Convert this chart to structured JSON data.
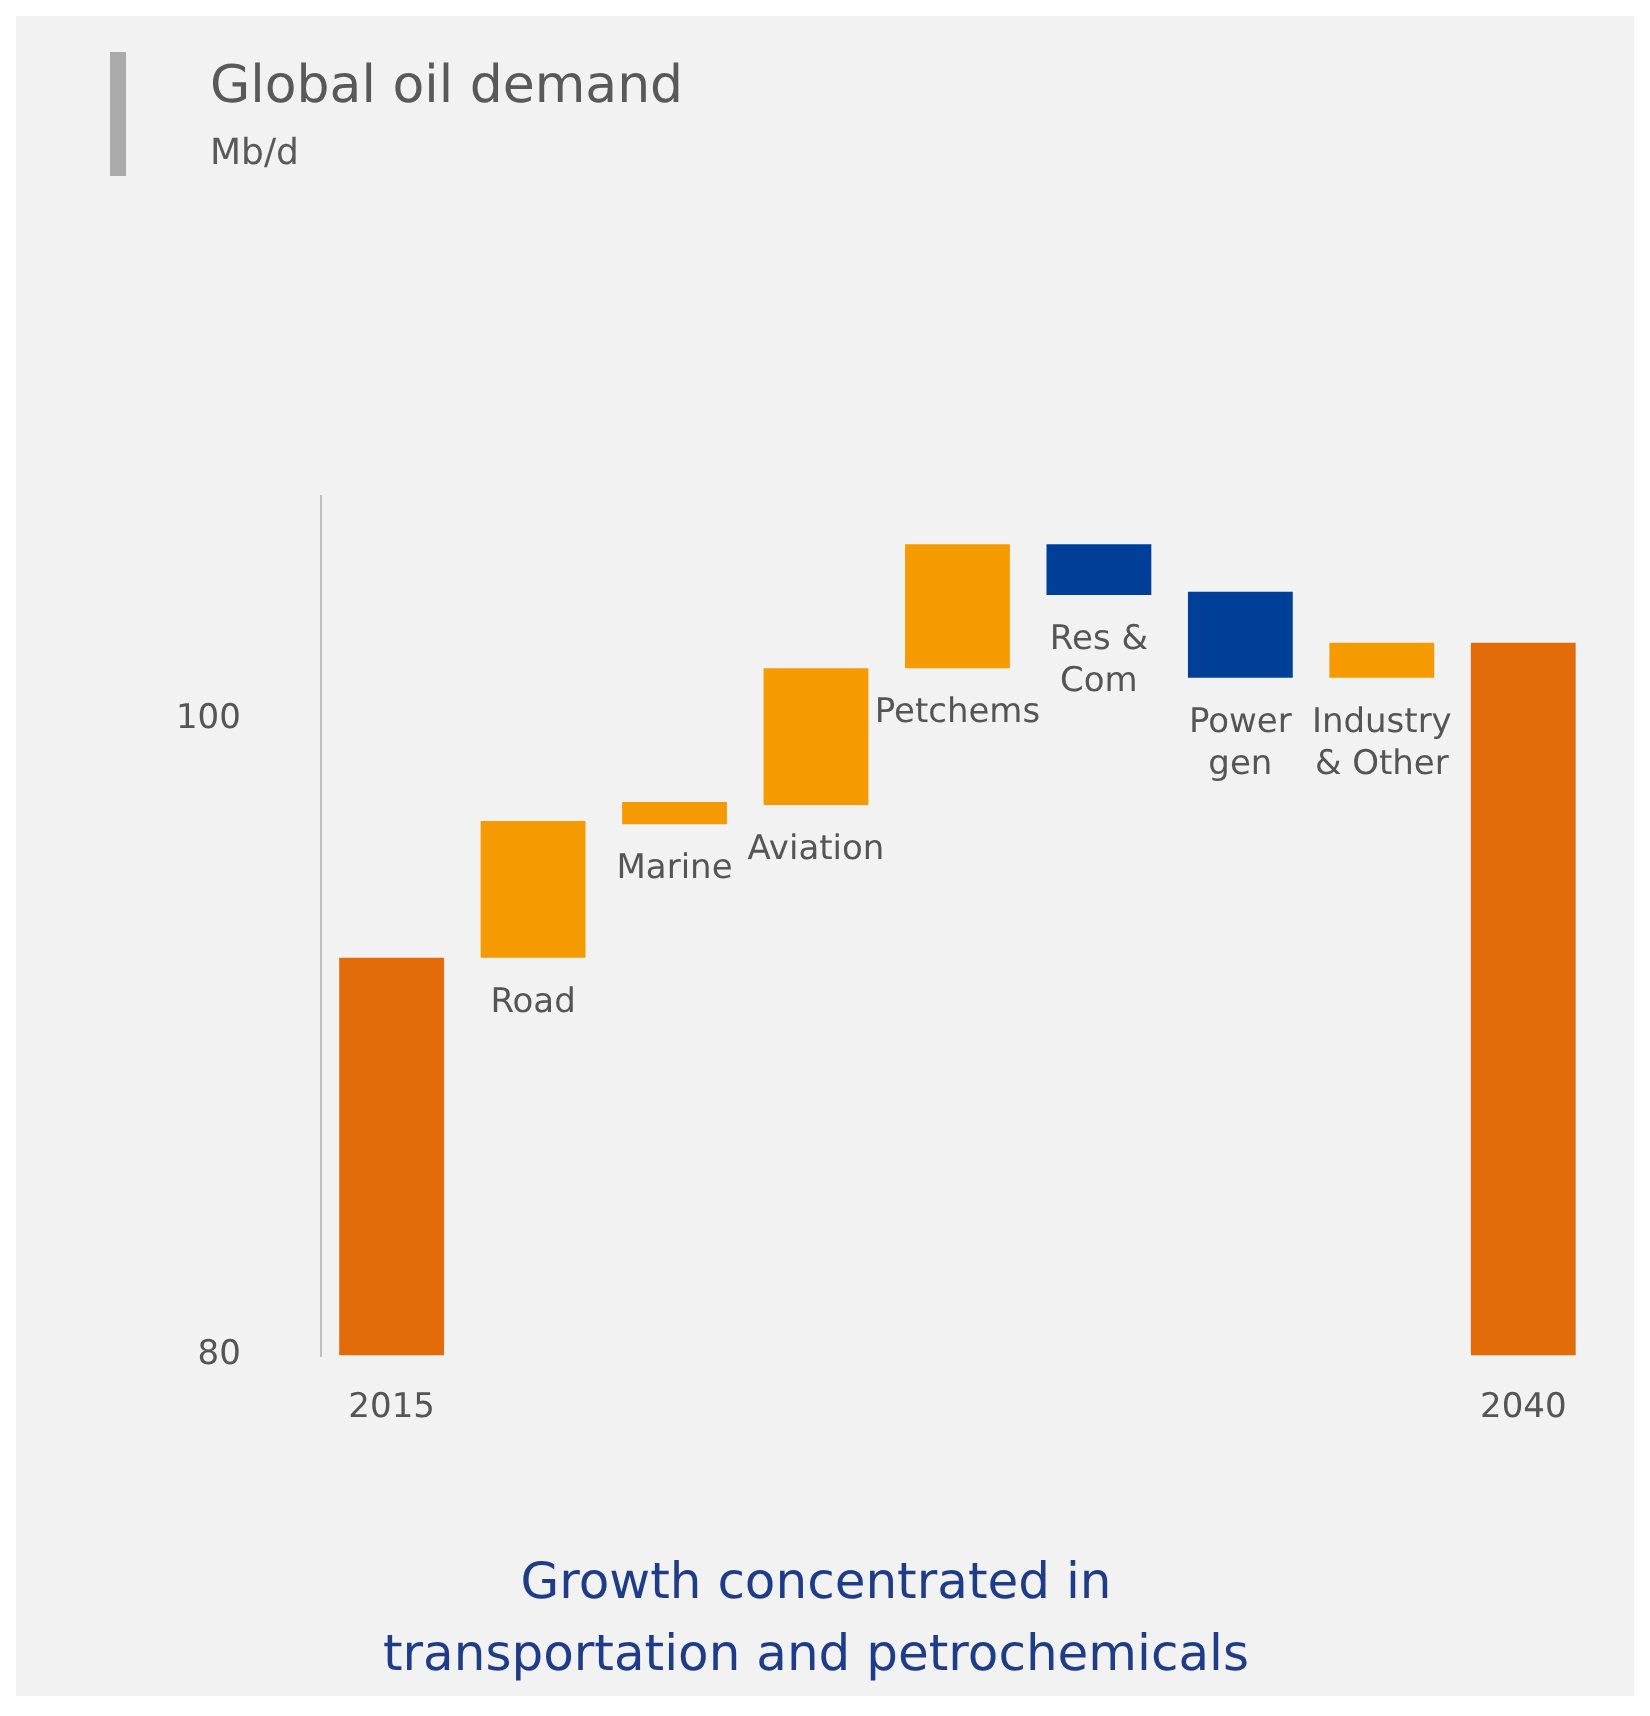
{
  "chart_data": {
    "type": "bar",
    "title": "Global oil demand",
    "subtitle": "Mb/d",
    "categories": [
      "2015",
      "Road",
      "Marine",
      "Aviation",
      "Petchems",
      "Res & Com",
      "Power gen",
      "Industry & Other",
      "2040"
    ],
    "values": [
      12.5,
      4.3,
      0.7,
      4.3,
      3.9,
      -1.6,
      -2.7,
      1.1,
      22.4
    ],
    "base": [
      80,
      92.5,
      96.7,
      97.3,
      101.6,
      105.5,
      104.0,
      101.3,
      80
    ],
    "colors": [
      "#e36c0a",
      "#f59a00",
      "#f59a00",
      "#f59a00",
      "#f59a00",
      "#003f98",
      "#003f98",
      "#f59a00",
      "#e36c0a"
    ],
    "ylim": [
      80,
      107
    ],
    "yticks": [
      80,
      100
    ],
    "grid": false,
    "legend": false,
    "annotations": [
      "Growth concentrated in transportation and petrochemicals"
    ]
  }
}
